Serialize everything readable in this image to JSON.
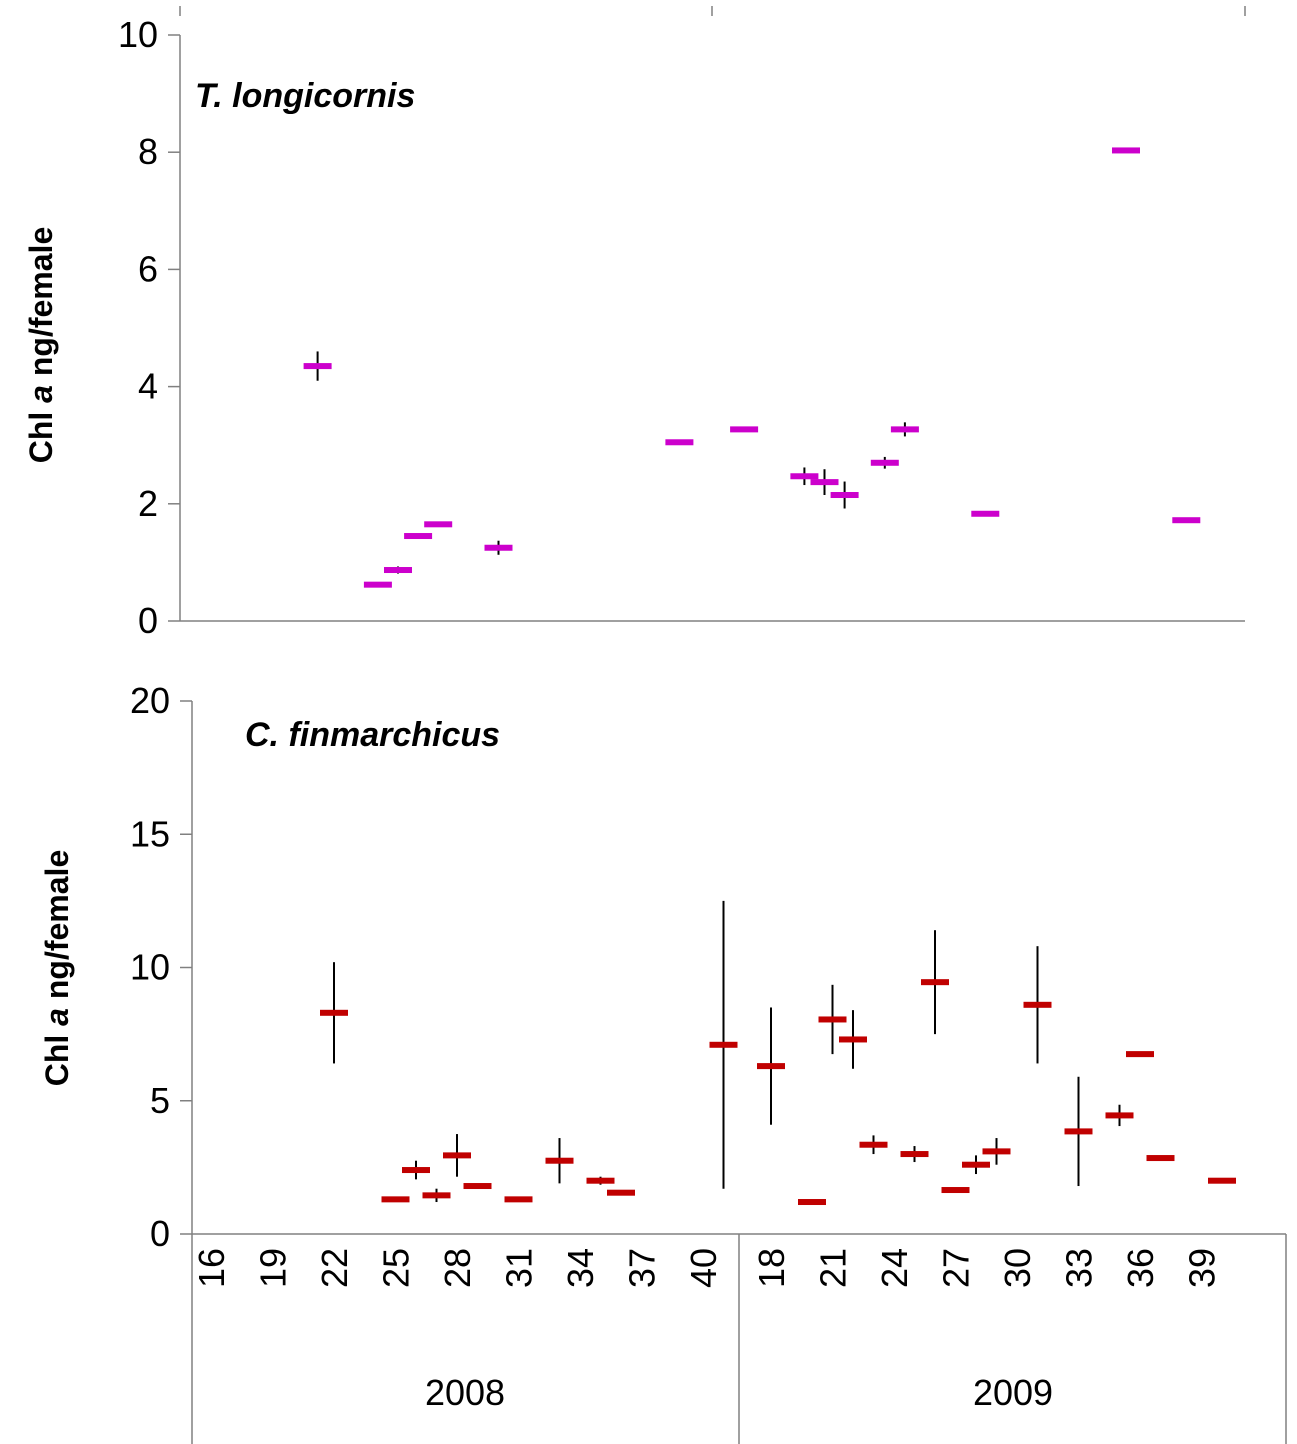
{
  "chart_data": [
    {
      "type": "scatter",
      "annotation": "T. longicornis",
      "ylabel": "Chl a ng/female",
      "ylabel_parts": [
        "Chl ",
        "a",
        "  ng/female"
      ],
      "ylim": [
        0,
        10
      ],
      "yticks": [
        0,
        2,
        4,
        6,
        8,
        10
      ],
      "grid": false,
      "marker_color": "#cc00cc",
      "points": [
        {
          "x": 22,
          "year": "2008",
          "y": 4.35,
          "err": 0.25
        },
        {
          "x": 25,
          "year": "2008",
          "y": 0.62,
          "err": 0.0
        },
        {
          "x": 26,
          "year": "2008",
          "y": 0.87,
          "err": 0.06
        },
        {
          "x": 27,
          "year": "2008",
          "y": 1.45,
          "err": 0.0
        },
        {
          "x": 28,
          "year": "2008",
          "y": 1.65,
          "err": 0.0
        },
        {
          "x": 31,
          "year": "2008",
          "y": 1.25,
          "err": 0.12
        },
        {
          "x": 40,
          "year": "2008",
          "y": 3.05,
          "err": 0.0
        },
        {
          "x": 18,
          "year": "2009",
          "y": 3.27,
          "err": 0.0
        },
        {
          "x": 21,
          "year": "2009",
          "y": 2.47,
          "err": 0.15
        },
        {
          "x": 22,
          "year": "2009",
          "y": 2.37,
          "err": 0.22
        },
        {
          "x": 23,
          "year": "2009",
          "y": 2.15,
          "err": 0.23
        },
        {
          "x": 25,
          "year": "2009",
          "y": 2.7,
          "err": 0.1
        },
        {
          "x": 26,
          "year": "2009",
          "y": 3.27,
          "err": 0.12
        },
        {
          "x": 30,
          "year": "2009",
          "y": 1.83,
          "err": 0.0
        },
        {
          "x": 37,
          "year": "2009",
          "y": 8.03,
          "err": 0.0
        },
        {
          "x": 40,
          "year": "2009",
          "y": 1.72,
          "err": 0.0
        }
      ]
    },
    {
      "type": "scatter",
      "annotation": "C. finmarchicus",
      "ylabel": "Chl a ng/female",
      "ylabel_parts": [
        "Chl ",
        "a",
        "  ng/female"
      ],
      "ylim": [
        0,
        20
      ],
      "yticks": [
        0,
        5,
        10,
        15,
        20
      ],
      "grid": false,
      "marker_color": "#c00000",
      "xlabel_groups": [
        {
          "label": "2008",
          "ticks": [
            "16",
            "19",
            "22",
            "25",
            "28",
            "31",
            "34",
            "37",
            "40"
          ]
        },
        {
          "label": "2009",
          "ticks": [
            "18",
            "21",
            "24",
            "27",
            "30",
            "33",
            "36",
            "39"
          ]
        }
      ],
      "points": [
        {
          "x": 22,
          "year": "2008",
          "y": 8.3,
          "err": 1.9
        },
        {
          "x": 25,
          "year": "2008",
          "y": 1.3,
          "err": 0.0
        },
        {
          "x": 26,
          "year": "2008",
          "y": 2.4,
          "err": 0.35
        },
        {
          "x": 27,
          "year": "2008",
          "y": 1.45,
          "err": 0.25
        },
        {
          "x": 28,
          "year": "2008",
          "y": 2.95,
          "err": 0.8
        },
        {
          "x": 29,
          "year": "2008",
          "y": 1.8,
          "err": 0.0
        },
        {
          "x": 31,
          "year": "2008",
          "y": 1.3,
          "err": 0.0
        },
        {
          "x": 33,
          "year": "2008",
          "y": 2.75,
          "err": 0.85
        },
        {
          "x": 35,
          "year": "2008",
          "y": 2.0,
          "err": 0.15
        },
        {
          "x": 36,
          "year": "2008",
          "y": 1.55,
          "err": 0.0
        },
        {
          "x": 41,
          "year": "2008",
          "y": 7.1,
          "err": 5.4
        },
        {
          "x": 18,
          "year": "2009",
          "y": 6.3,
          "err": 2.2
        },
        {
          "x": 20,
          "year": "2009",
          "y": 1.2,
          "err": 0.0
        },
        {
          "x": 21,
          "year": "2009",
          "y": 8.05,
          "err": 1.3
        },
        {
          "x": 22,
          "year": "2009",
          "y": 7.3,
          "err": 1.1
        },
        {
          "x": 23,
          "year": "2009",
          "y": 3.35,
          "err": 0.35
        },
        {
          "x": 25,
          "year": "2009",
          "y": 3.0,
          "err": 0.3
        },
        {
          "x": 26,
          "year": "2009",
          "y": 9.45,
          "err": 1.95
        },
        {
          "x": 27,
          "year": "2009",
          "y": 1.65,
          "err": 0.0
        },
        {
          "x": 28,
          "year": "2009",
          "y": 2.6,
          "err": 0.35
        },
        {
          "x": 29,
          "year": "2009",
          "y": 3.1,
          "err": 0.5
        },
        {
          "x": 31,
          "year": "2009",
          "y": 8.6,
          "err": 2.2
        },
        {
          "x": 33,
          "year": "2009",
          "y": 3.85,
          "err": 2.05
        },
        {
          "x": 35,
          "year": "2009",
          "y": 4.45,
          "err": 0.4
        },
        {
          "x": 36,
          "year": "2009",
          "y": 6.75,
          "err": 0.0
        },
        {
          "x": 37,
          "year": "2009",
          "y": 2.85,
          "err": 0.0
        },
        {
          "x": 40,
          "year": "2009",
          "y": 2.0,
          "err": 0.0
        }
      ]
    }
  ]
}
